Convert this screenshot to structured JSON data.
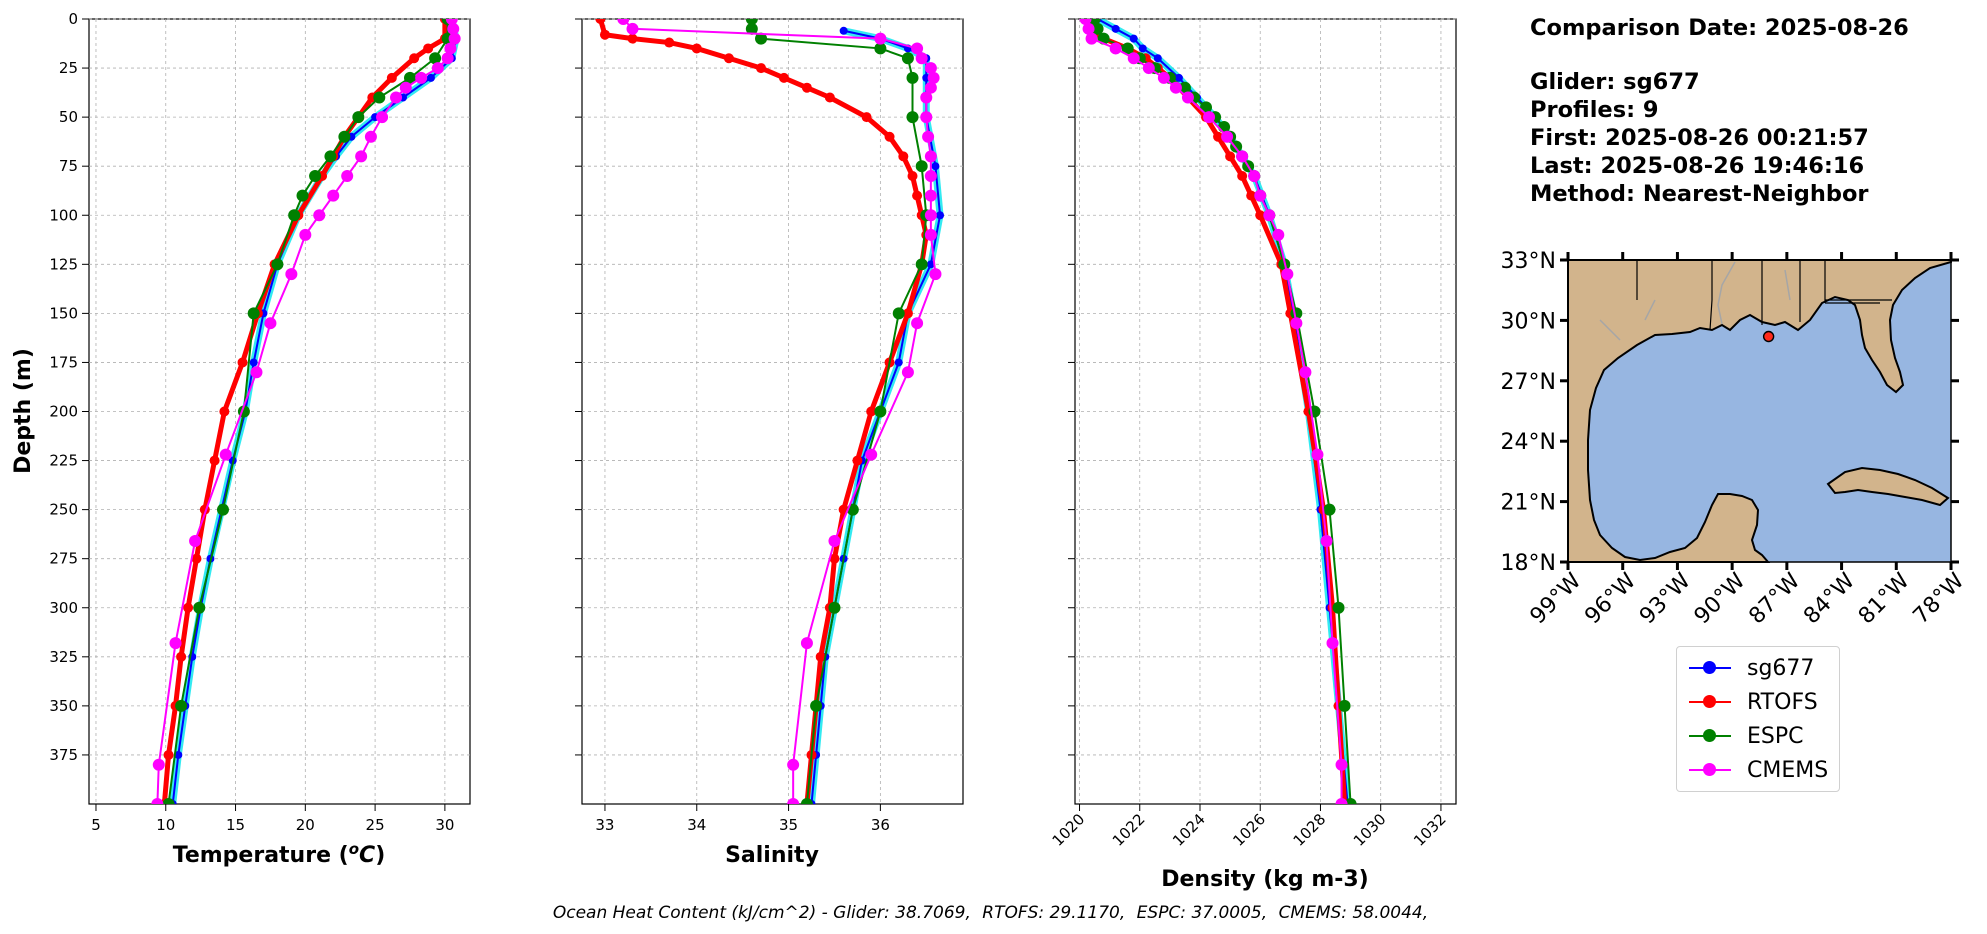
{
  "chart_data": [
    {
      "type": "line",
      "xlabel": "Temperature (°C)",
      "ylabel": "Depth (m)",
      "xlim": [
        4.5,
        31.8
      ],
      "ylim": [
        400,
        0
      ],
      "xticks": [
        5,
        10,
        15,
        20,
        25,
        30
      ],
      "yticks": [
        0,
        25,
        50,
        75,
        100,
        125,
        150,
        175,
        200,
        225,
        250,
        275,
        300,
        325,
        350,
        375
      ],
      "grid": true,
      "series": [
        {
          "name": "sg677",
          "color": "#0000ff",
          "depth": [
            0,
            10,
            20,
            30,
            40,
            50,
            60,
            70,
            80,
            100,
            125,
            150,
            175,
            200,
            225,
            250,
            275,
            300,
            325,
            350,
            375,
            400
          ],
          "values": [
            30.5,
            30.8,
            30.5,
            29.0,
            27.0,
            25.0,
            23.3,
            22.2,
            21.2,
            19.5,
            18.0,
            17.0,
            16.3,
            15.7,
            14.8,
            14.0,
            13.2,
            12.5,
            11.9,
            11.4,
            10.9,
            10.5
          ]
        },
        {
          "name": "RTOFS",
          "color": "#ff0000",
          "depth": [
            0,
            10,
            15,
            20,
            30,
            40,
            50,
            60,
            70,
            80,
            100,
            125,
            150,
            175,
            200,
            225,
            250,
            275,
            300,
            325,
            350,
            375,
            400
          ],
          "values": [
            30.0,
            30.0,
            28.8,
            27.8,
            26.2,
            24.8,
            23.8,
            22.8,
            22.0,
            21.2,
            19.5,
            17.8,
            16.6,
            15.5,
            14.2,
            13.5,
            12.8,
            12.2,
            11.6,
            11.1,
            10.7,
            10.2,
            9.9
          ]
        },
        {
          "name": "ESPC",
          "color": "#008000",
          "depth": [
            0,
            10,
            20,
            30,
            40,
            50,
            60,
            70,
            80,
            90,
            100,
            125,
            150,
            200,
            250,
            300,
            350,
            400
          ],
          "values": [
            30.2,
            30.2,
            29.3,
            27.5,
            25.3,
            23.8,
            22.8,
            21.8,
            20.7,
            19.8,
            19.2,
            18.0,
            16.3,
            15.6,
            14.1,
            12.4,
            11.1,
            10.2
          ]
        },
        {
          "name": "CMEMS",
          "color": "#ff00ff",
          "depth": [
            0,
            5,
            10,
            15,
            20,
            25,
            30,
            35,
            40,
            50,
            60,
            70,
            80,
            90,
            100,
            110,
            130,
            155,
            180,
            222,
            266,
            318,
            380,
            400
          ],
          "values": [
            30.5,
            30.6,
            30.7,
            30.4,
            30.2,
            29.5,
            28.3,
            27.2,
            26.5,
            25.5,
            24.7,
            24.0,
            23.0,
            22.0,
            21.0,
            20.0,
            19.0,
            17.5,
            16.5,
            14.3,
            12.1,
            10.7,
            9.5,
            9.4
          ]
        }
      ]
    },
    {
      "type": "line",
      "xlabel": "Salinity",
      "ylim": [
        400,
        0
      ],
      "xlim": [
        32.75,
        36.9
      ],
      "xticks": [
        33,
        34,
        35,
        36
      ],
      "grid": true,
      "series": [
        {
          "name": "sg677",
          "color": "#0000ff",
          "depth": [
            6,
            10,
            15,
            20,
            30,
            50,
            75,
            100,
            125,
            150,
            175,
            200,
            225,
            250,
            275,
            300,
            325,
            350,
            375,
            400
          ],
          "values": [
            35.6,
            36.0,
            36.3,
            36.5,
            36.5,
            36.5,
            36.6,
            36.65,
            36.55,
            36.3,
            36.2,
            36.0,
            35.8,
            35.7,
            35.6,
            35.5,
            35.4,
            35.35,
            35.3,
            35.25
          ]
        },
        {
          "name": "RTOFS",
          "color": "#ff0000",
          "depth": [
            0,
            8,
            10,
            12,
            15,
            20,
            25,
            30,
            35,
            40,
            50,
            60,
            70,
            80,
            90,
            100,
            110,
            125,
            150,
            175,
            200,
            225,
            250,
            275,
            300,
            325,
            350,
            375,
            400
          ],
          "values": [
            32.95,
            33.0,
            33.3,
            33.7,
            34.0,
            34.35,
            34.7,
            34.95,
            35.2,
            35.45,
            35.85,
            36.1,
            36.25,
            36.35,
            36.4,
            36.45,
            36.5,
            36.45,
            36.3,
            36.1,
            35.9,
            35.75,
            35.6,
            35.5,
            35.45,
            35.35,
            35.3,
            35.25,
            35.2
          ]
        },
        {
          "name": "ESPC",
          "color": "#008000",
          "depth": [
            0,
            5,
            10,
            15,
            20,
            30,
            50,
            75,
            100,
            125,
            150,
            200,
            250,
            300,
            350,
            400
          ],
          "values": [
            34.6,
            34.6,
            34.7,
            36.0,
            36.3,
            36.35,
            36.35,
            36.45,
            36.5,
            36.45,
            36.2,
            36.0,
            35.7,
            35.5,
            35.3,
            35.2
          ]
        },
        {
          "name": "CMEMS",
          "color": "#ff00ff",
          "depth": [
            0,
            5,
            10,
            15,
            20,
            25,
            30,
            35,
            40,
            50,
            60,
            70,
            80,
            90,
            100,
            110,
            130,
            155,
            180,
            222,
            266,
            318,
            380,
            400
          ],
          "values": [
            33.2,
            33.3,
            36.0,
            36.4,
            36.45,
            36.55,
            36.58,
            36.55,
            36.5,
            36.5,
            36.52,
            36.55,
            36.55,
            36.55,
            36.55,
            36.55,
            36.6,
            36.4,
            36.3,
            35.9,
            35.5,
            35.2,
            35.05,
            35.05
          ]
        }
      ]
    },
    {
      "type": "line",
      "xlabel": "Density (kg m-3)",
      "ylim": [
        400,
        0
      ],
      "xlim": [
        1019.85,
        1032.5
      ],
      "xticks": [
        1020,
        1022,
        1024,
        1026,
        1028,
        1030,
        1032
      ],
      "grid": true,
      "series": [
        {
          "name": "sg677",
          "color": "#0000ff",
          "depth": [
            0,
            5,
            10,
            15,
            20,
            30,
            40,
            50,
            60,
            70,
            80,
            100,
            125,
            150,
            200,
            250,
            300,
            350,
            400
          ],
          "values": [
            1020.6,
            1021.2,
            1021.8,
            1022.1,
            1022.6,
            1023.3,
            1023.9,
            1024.5,
            1025.0,
            1025.4,
            1025.8,
            1026.3,
            1026.8,
            1027.1,
            1027.6,
            1028.0,
            1028.3,
            1028.6,
            1028.9
          ]
        },
        {
          "name": "RTOFS",
          "color": "#ff0000",
          "depth": [
            0,
            5,
            10,
            15,
            20,
            25,
            30,
            40,
            50,
            60,
            70,
            80,
            90,
            100,
            125,
            150,
            200,
            250,
            300,
            350,
            400
          ],
          "values": [
            1020.3,
            1020.3,
            1020.8,
            1021.6,
            1022.2,
            1022.6,
            1023.0,
            1023.6,
            1024.2,
            1024.6,
            1025.0,
            1025.4,
            1025.7,
            1026.0,
            1026.7,
            1027.0,
            1027.6,
            1028.1,
            1028.4,
            1028.6,
            1028.8
          ]
        },
        {
          "name": "ESPC",
          "color": "#008000",
          "depth": [
            0,
            5,
            10,
            15,
            20,
            25,
            30,
            35,
            40,
            45,
            50,
            55,
            60,
            65,
            70,
            75,
            80,
            90,
            100,
            125,
            150,
            200,
            250,
            300,
            350,
            400
          ],
          "values": [
            1020.5,
            1020.6,
            1020.8,
            1021.6,
            1022.0,
            1022.5,
            1023.0,
            1023.5,
            1023.8,
            1024.2,
            1024.5,
            1024.8,
            1025.0,
            1025.2,
            1025.4,
            1025.6,
            1025.8,
            1026.0,
            1026.3,
            1026.8,
            1027.2,
            1027.8,
            1028.3,
            1028.6,
            1028.8,
            1029.0
          ]
        },
        {
          "name": "CMEMS",
          "color": "#ff00ff",
          "depth": [
            0,
            5,
            10,
            15,
            20,
            25,
            30,
            35,
            40,
            50,
            60,
            70,
            80,
            90,
            100,
            110,
            130,
            155,
            180,
            222,
            266,
            318,
            380,
            400
          ],
          "values": [
            1020.2,
            1020.3,
            1020.4,
            1021.2,
            1021.8,
            1022.3,
            1022.8,
            1023.2,
            1023.6,
            1024.3,
            1024.9,
            1025.4,
            1025.8,
            1026.0,
            1026.3,
            1026.6,
            1026.9,
            1027.2,
            1027.5,
            1027.9,
            1028.2,
            1028.4,
            1028.7,
            1028.7
          ]
        }
      ]
    }
  ],
  "info": {
    "comparison_date": "Comparison Date: 2025-08-26",
    "glider": "Glider: sg677",
    "profiles": "Profiles: 9",
    "first": "First: 2025-08-26 00:21:57",
    "last": "Last: 2025-08-26 19:46:16",
    "method": "Method: Nearest-Neighbor"
  },
  "map": {
    "lat_ticks": [
      "33°N",
      "30°N",
      "27°N",
      "24°N",
      "21°N",
      "18°N"
    ],
    "lon_ticks": [
      "99°W",
      "96°W",
      "93°W",
      "90°W",
      "87°W",
      "84°W",
      "81°W",
      "78°W"
    ],
    "lat_range": [
      18,
      33
    ],
    "lon_range": [
      -99,
      -78
    ],
    "glider_position": {
      "lat": 29.2,
      "lon": -88.0
    },
    "land_color": "#d2b48c",
    "ocean_color": "#97b6e1"
  },
  "legend": [
    {
      "label": "sg677",
      "color": "#0000ff"
    },
    {
      "label": "RTOFS",
      "color": "#ff0000"
    },
    {
      "label": "ESPC",
      "color": "#008000"
    },
    {
      "label": "CMEMS",
      "color": "#ff00ff"
    }
  ],
  "footer": {
    "prefix": "Ocean Heat Content (kJ/cm^2) - ",
    "glider": "Glider: 38.7069,",
    "rtofs": "RTOFS: 29.1170,",
    "espc": "ESPC: 37.0005,",
    "cmems": "CMEMS: 58.0044,"
  }
}
